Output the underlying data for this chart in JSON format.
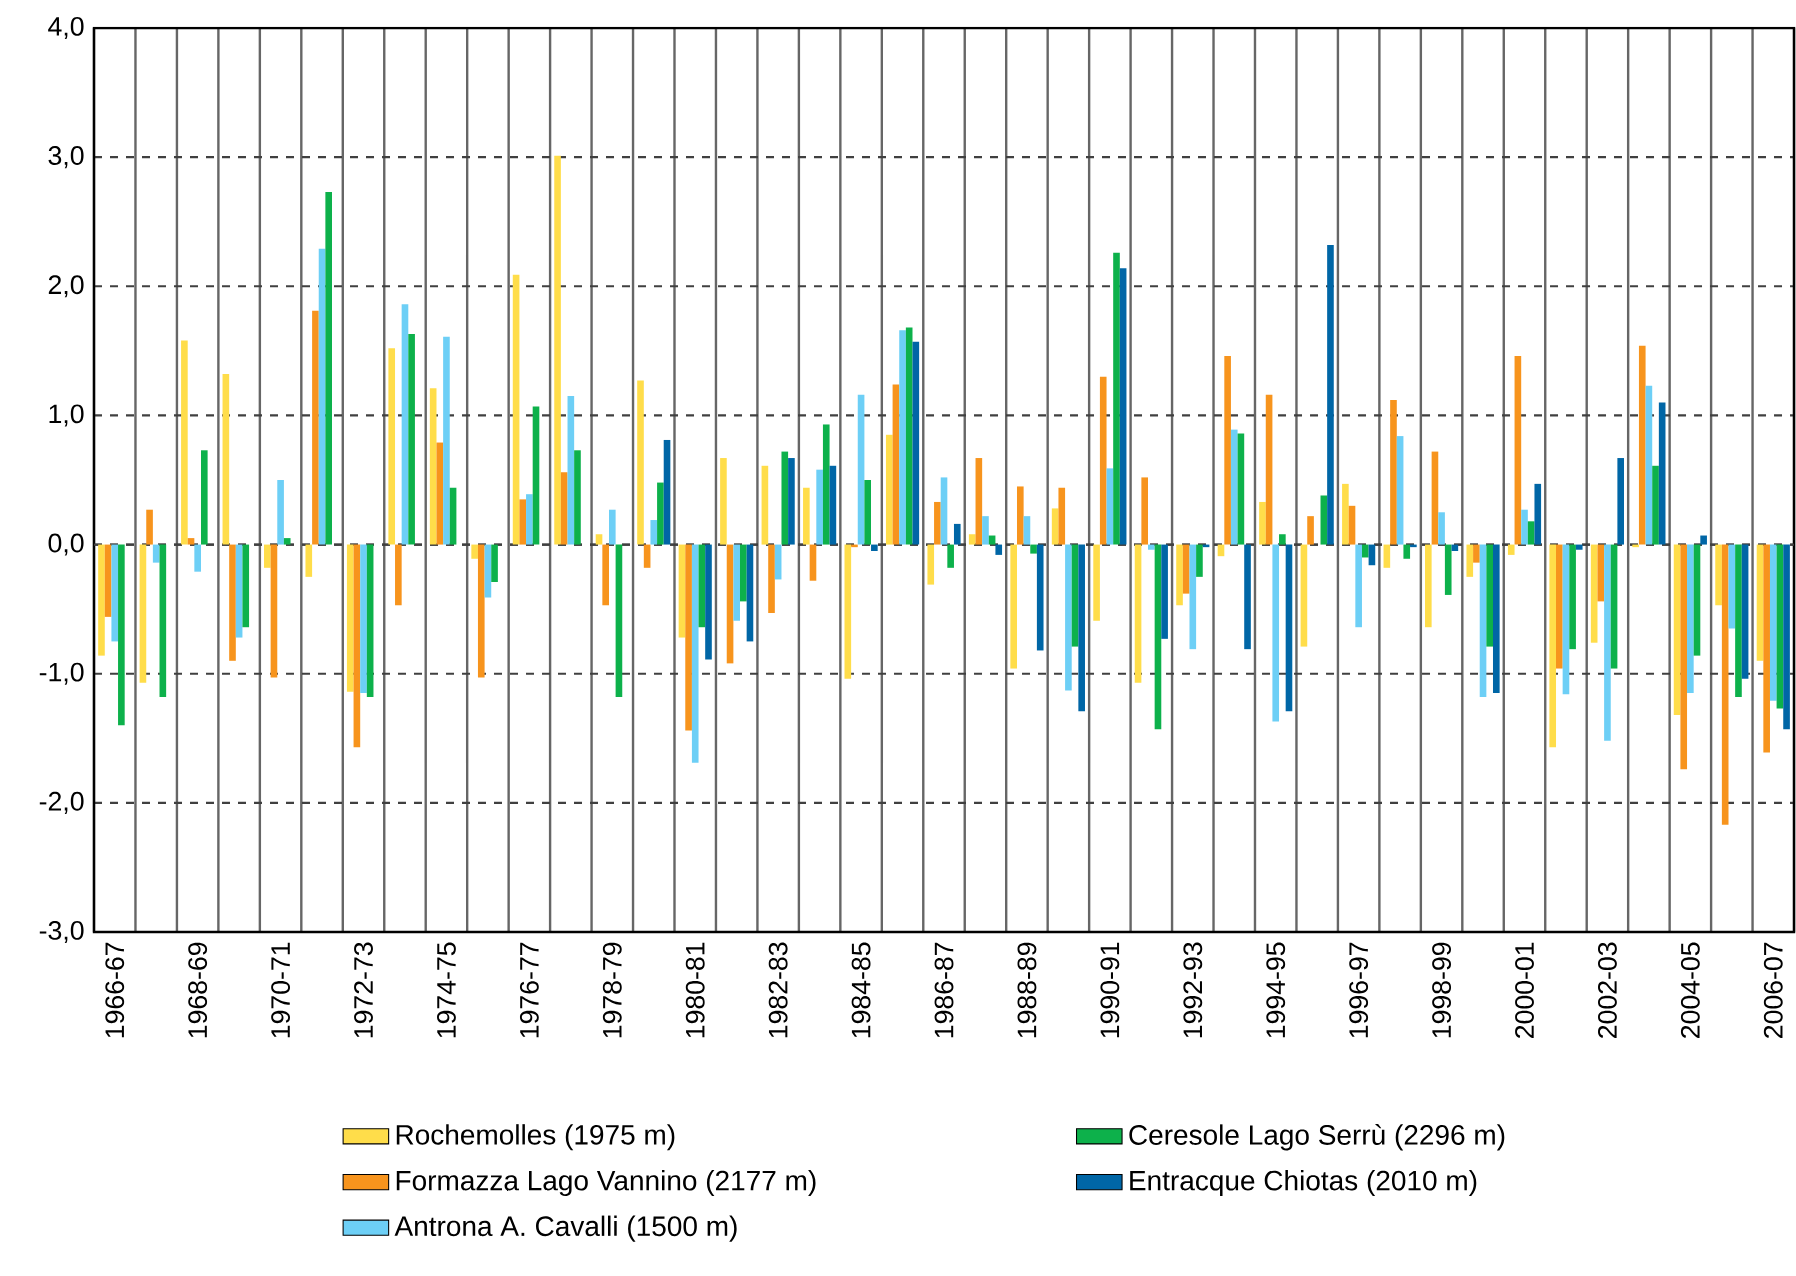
{
  "chart_data": {
    "type": "bar",
    "categories": [
      "1966-67",
      null,
      "1968-69",
      null,
      "1970-71",
      null,
      "1972-73",
      null,
      "1974-75",
      null,
      "1976-77",
      null,
      "1978-79",
      null,
      "1980-81",
      null,
      "1982-83",
      null,
      "1984-85",
      null,
      "1986-87",
      null,
      "1988-89",
      null,
      "1990-91",
      null,
      "1992-93",
      null,
      "1994-95",
      null,
      "1996-97",
      null,
      "1998-99",
      null,
      "2000-01",
      null,
      "2002-03",
      null,
      "2004-05",
      null,
      "2006-07"
    ],
    "series": [
      {
        "name": "Rochemolles (1975 m)",
        "color": "#ffdd4a",
        "values": [
          -0.86,
          -1.07,
          1.58,
          1.32,
          -0.18,
          -0.25,
          -1.14,
          1.52,
          1.21,
          -0.11,
          2.09,
          3.01,
          0.08,
          1.27,
          -0.72,
          0.67,
          0.61,
          0.44,
          -1.04,
          0.85,
          -0.31,
          0.08,
          -0.96,
          0.28,
          -0.59,
          -1.07,
          -0.47,
          -0.09,
          0.33,
          -0.79,
          0.47,
          -0.18,
          -0.64,
          -0.25,
          -0.08,
          -1.57,
          -0.76,
          -0.02,
          -1.32,
          -0.47,
          -0.9
        ]
      },
      {
        "name": "Formazza Lago Vannino (2177 m)",
        "color": "#f7941d",
        "values": [
          -0.56,
          0.27,
          0.05,
          -0.9,
          -1.03,
          1.81,
          -1.57,
          -0.47,
          0.79,
          -1.03,
          0.35,
          0.56,
          -0.47,
          -0.18,
          -1.44,
          -0.92,
          -0.53,
          -0.28,
          -0.02,
          1.24,
          0.33,
          0.67,
          0.45,
          0.44,
          1.3,
          0.52,
          -0.38,
          1.46,
          1.16,
          0.22,
          0.3,
          1.12,
          0.72,
          -0.14,
          1.46,
          -0.96,
          -0.44,
          1.54,
          -1.74,
          -2.17,
          -1.61
        ]
      },
      {
        "name": "Antrona A. Cavalli (1500 m)",
        "color": "#6dcff6",
        "values": [
          -0.75,
          -0.14,
          -0.21,
          -0.72,
          0.5,
          2.29,
          -1.15,
          1.86,
          1.61,
          -0.41,
          0.39,
          1.15,
          0.27,
          0.19,
          -1.69,
          -0.59,
          -0.27,
          0.58,
          1.16,
          1.66,
          0.52,
          0.22,
          0.22,
          -1.13,
          0.59,
          -0.04,
          -0.81,
          0.89,
          -1.37,
          null,
          -0.64,
          0.84,
          0.25,
          -1.18,
          0.27,
          -1.16,
          -1.52,
          1.23,
          -1.15,
          -0.65,
          -1.21
        ]
      },
      {
        "name": "Ceresole Lago Serrù (2296 m)",
        "color": "#0db14b",
        "values": [
          -1.4,
          -1.18,
          0.73,
          -0.64,
          0.05,
          2.73,
          -1.18,
          1.63,
          0.44,
          -0.29,
          1.07,
          0.73,
          -1.18,
          0.48,
          -0.64,
          -0.44,
          0.72,
          0.93,
          0.5,
          1.68,
          -0.18,
          0.07,
          -0.07,
          -0.79,
          2.26,
          -1.43,
          -0.25,
          0.86,
          0.08,
          0.38,
          -0.1,
          -0.11,
          -0.39,
          -0.79,
          0.18,
          -0.81,
          -0.96,
          0.61,
          -0.86,
          -1.18,
          -1.27
        ]
      },
      {
        "name": "Entracque Chiotas (2010 m)",
        "color": "#0066a6",
        "values": [
          null,
          null,
          null,
          null,
          null,
          null,
          null,
          null,
          null,
          null,
          null,
          null,
          null,
          0.81,
          -0.89,
          -0.75,
          0.67,
          0.61,
          -0.05,
          1.57,
          0.16,
          -0.08,
          -0.82,
          -1.29,
          2.14,
          -0.73,
          -0.02,
          -0.81,
          -1.29,
          2.32,
          -0.16,
          -0.02,
          -0.05,
          -1.15,
          0.47,
          -0.04,
          0.67,
          1.1,
          0.07,
          -1.04,
          -1.43
        ]
      }
    ],
    "ylim": [
      -3,
      4
    ],
    "yticks": [
      {
        "value": -3,
        "label": "-3,0"
      },
      {
        "value": -2,
        "label": "-2,0"
      },
      {
        "value": -1,
        "label": "-1,0"
      },
      {
        "value": 0,
        "label": "0,0"
      },
      {
        "value": 1,
        "label": "1,0"
      },
      {
        "value": 2,
        "label": "2,0"
      },
      {
        "value": 3,
        "label": "3,0"
      },
      {
        "value": 4,
        "label": "4,0"
      }
    ],
    "grid": true,
    "legend": "bottom"
  }
}
